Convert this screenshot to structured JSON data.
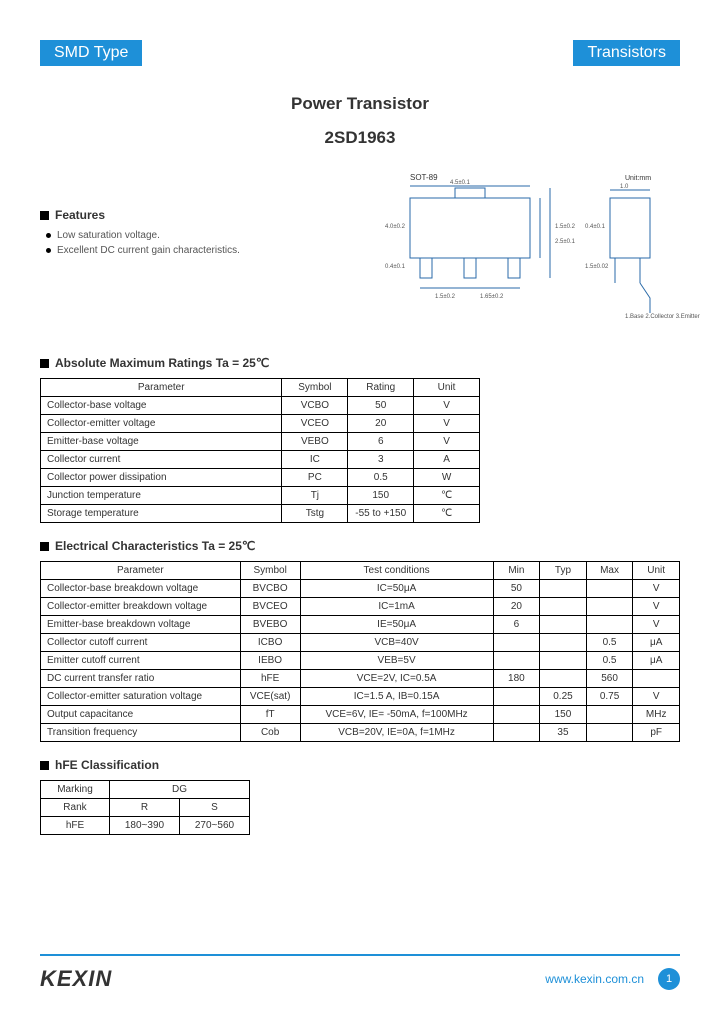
{
  "header": {
    "left": "SMD Type",
    "right": "Transistors"
  },
  "title": {
    "line1": "Power Transistor",
    "line2": "2SD1963"
  },
  "features": {
    "heading": "Features",
    "items": [
      "Low saturation voltage.",
      "Excellent DC current gain characteristics."
    ]
  },
  "diagram": {
    "label_top": "SOT-89",
    "label_right": "Unit:mm",
    "dims": [
      "4.5±0.1",
      "1.5±0.2",
      "2.5±0.1",
      "4.0±0.2",
      "0.4±0.1",
      "1.5±0.2",
      "1.65±0.2",
      "0.4±0.1",
      "1.5±0.02",
      "1.0"
    ],
    "pins": "1.Base\n2.Collector\n3.Emitter",
    "line_color": "#2a6aa8"
  },
  "tbl1": {
    "heading": "Absolute Maximum Ratings Ta = 25℃",
    "cols": [
      "Parameter",
      "Symbol",
      "Rating",
      "Unit"
    ],
    "rows": [
      [
        "Collector-base voltage",
        "VCBO",
        "50",
        "V"
      ],
      [
        "Collector-emitter voltage",
        "VCEO",
        "20",
        "V"
      ],
      [
        "Emitter-base voltage",
        "VEBO",
        "6",
        "V"
      ],
      [
        "Collector current",
        "IC",
        "3",
        "A"
      ],
      [
        "Collector power dissipation",
        "PC",
        "0.5",
        "W"
      ],
      [
        "Junction temperature",
        "Tj",
        "150",
        "℃"
      ],
      [
        "Storage temperature",
        "Tstg",
        "-55 to +150",
        "℃"
      ]
    ]
  },
  "tbl2": {
    "heading": "Electrical Characteristics Ta = 25℃",
    "cols": [
      "Parameter",
      "Symbol",
      "Test conditions",
      "Min",
      "Typ",
      "Max",
      "Unit"
    ],
    "rows": [
      [
        "Collector-base breakdown voltage",
        "BVCBO",
        "IC=50μA",
        "50",
        "",
        "",
        "V"
      ],
      [
        "Collector-emitter breakdown voltage",
        "BVCEO",
        "IC=1mA",
        "20",
        "",
        "",
        "V"
      ],
      [
        "Emitter-base breakdown voltage",
        "BVEBO",
        "IE=50μA",
        "6",
        "",
        "",
        "V"
      ],
      [
        "Collector cutoff current",
        "ICBO",
        "VCB=40V",
        "",
        "",
        "0.5",
        "μA"
      ],
      [
        "Emitter cutoff current",
        "IEBO",
        "VEB=5V",
        "",
        "",
        "0.5",
        "μA"
      ],
      [
        "DC current transfer ratio",
        "hFE",
        "VCE=2V, IC=0.5A",
        "180",
        "",
        "560",
        ""
      ],
      [
        "Collector-emitter saturation voltage",
        "VCE(sat)",
        "IC=1.5 A, IB=0.15A",
        "",
        "0.25",
        "0.75",
        "V"
      ],
      [
        "Output capacitance",
        "fT",
        "VCE=6V, IE= -50mA, f=100MHz",
        "",
        "150",
        "",
        "MHz"
      ],
      [
        "Transition frequency",
        "Cob",
        "VCB=20V, IE=0A, f=1MHz",
        "",
        "35",
        "",
        "pF"
      ]
    ]
  },
  "tbl3": {
    "heading": "hFE Classification",
    "rows": [
      [
        "Marking",
        "DG",
        ""
      ],
      [
        "Rank",
        "R",
        "S"
      ],
      [
        "hFE",
        "180~390",
        "270~560"
      ]
    ]
  },
  "footer": {
    "logo": "KEXIN",
    "url": "www.kexin.com.cn",
    "page": "1"
  }
}
